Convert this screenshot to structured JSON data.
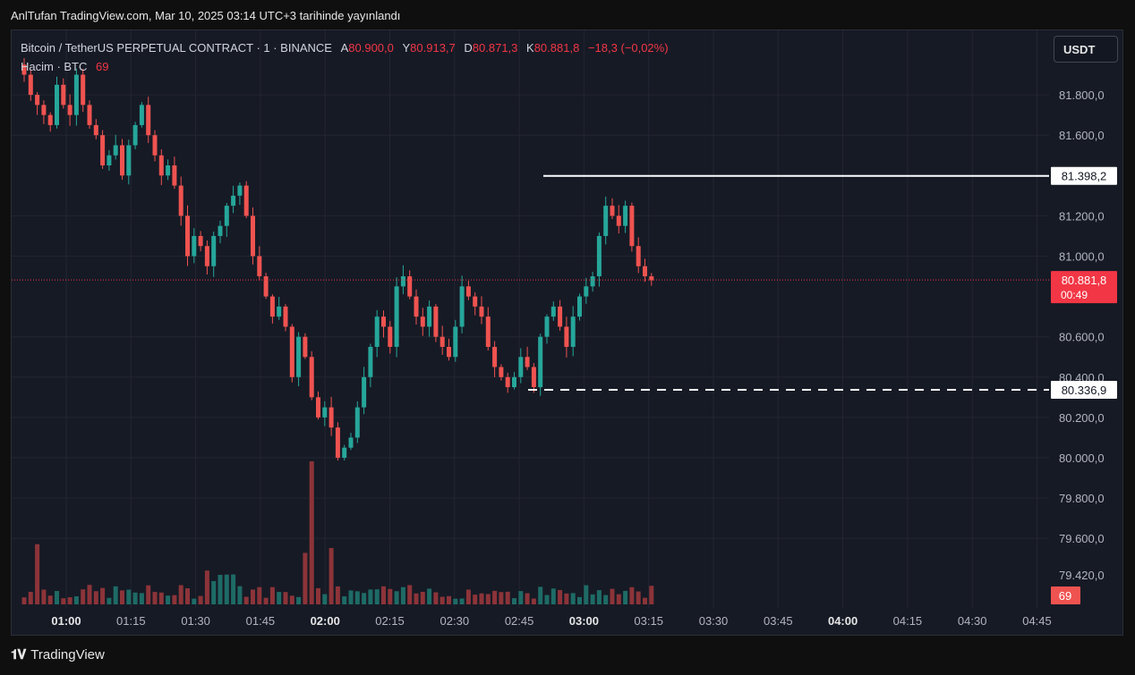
{
  "header": {
    "published": "AnlTufan TradingView.com, Mar 10, 2025 03:14 UTC+3 tarihinde yayınlandı"
  },
  "legend": {
    "symbol": "Bitcoin / TetherUS PERPETUAL CONTRACT · 1 · BINANCE",
    "a_label": "A",
    "a_value": "80.900,0",
    "y_label": "Y",
    "y_value": "80.913,7",
    "d_label": "D",
    "d_value": "80.871,3",
    "k_label": "K",
    "k_value": "80.881,8",
    "change": "−18,3 (−0,02%)",
    "volume_label": "Hacim · BTC",
    "volume_value": "69"
  },
  "currency_button": "USDT",
  "footer": {
    "brand": "TradingView"
  },
  "colors": {
    "up": "#26a69a",
    "down": "#ef5350",
    "up_vol": "#1e6b66",
    "down_vol": "#8c3439",
    "current_price": "#f23645"
  },
  "chart_data": {
    "type": "candlestick",
    "y_axis_ticks": [
      "81.800,0",
      "81.600,0",
      "81.200,0",
      "81.000,0",
      "80.600,0",
      "80.400,0",
      "80.200,0",
      "80.000,0",
      "79.800,0",
      "79.600,0",
      "79.420,0"
    ],
    "y_axis_tick_values": [
      81800,
      81600,
      81200,
      81000,
      80600,
      80400,
      80200,
      80000,
      79800,
      79600,
      79420
    ],
    "x_axis_ticks": [
      "01:00",
      "01:15",
      "01:30",
      "01:45",
      "02:00",
      "02:15",
      "02:30",
      "02:45",
      "03:00",
      "03:15",
      "03:30",
      "03:45",
      "04:00",
      "04:15",
      "04:30",
      "04:45"
    ],
    "x_axis_bold": [
      "01:00",
      "02:00",
      "03:00",
      "04:00"
    ],
    "resistance": {
      "price": 81398.2,
      "label": "81.398,2",
      "style": "solid"
    },
    "support": {
      "price": 80336.9,
      "label": "80.336,9",
      "style": "dashed"
    },
    "current_price": {
      "price": 80881.8,
      "label": "80.881,8",
      "countdown": "00:49"
    },
    "volume_badge": "69",
    "ylim": [
      79420,
      81980
    ],
    "series": [
      {
        "name": "BTCUSDT",
        "close": [
          81900,
          81800,
          81750,
          81700,
          81650,
          81850,
          81750,
          81700,
          81900,
          81750,
          81650,
          81600,
          81450,
          81500,
          81550,
          81400,
          81550,
          81650,
          81750,
          81600,
          81500,
          81400,
          81450,
          81350,
          81200,
          81000,
          81100,
          81050,
          80950,
          81100,
          81150,
          81250,
          81300,
          81350,
          81200,
          81000,
          80900,
          80800,
          80700,
          80750,
          80650,
          80400,
          80600,
          80500,
          80300,
          80200,
          80250,
          80150,
          80000,
          80050,
          80100,
          80250,
          80400,
          80550,
          80700,
          80650,
          80550,
          80850,
          80900,
          80800,
          80700,
          80650,
          80750,
          80600,
          80550,
          80500,
          80650,
          80850,
          80800,
          80750,
          80700,
          80550,
          80450,
          80400,
          80350,
          80400,
          80500,
          80450,
          80350,
          80600,
          80700,
          80750,
          80650,
          80550,
          80700,
          80800,
          80850,
          80900,
          81100,
          81250,
          81200,
          81150,
          81250,
          81050,
          80950,
          80900,
          80880
        ]
      }
    ]
  }
}
